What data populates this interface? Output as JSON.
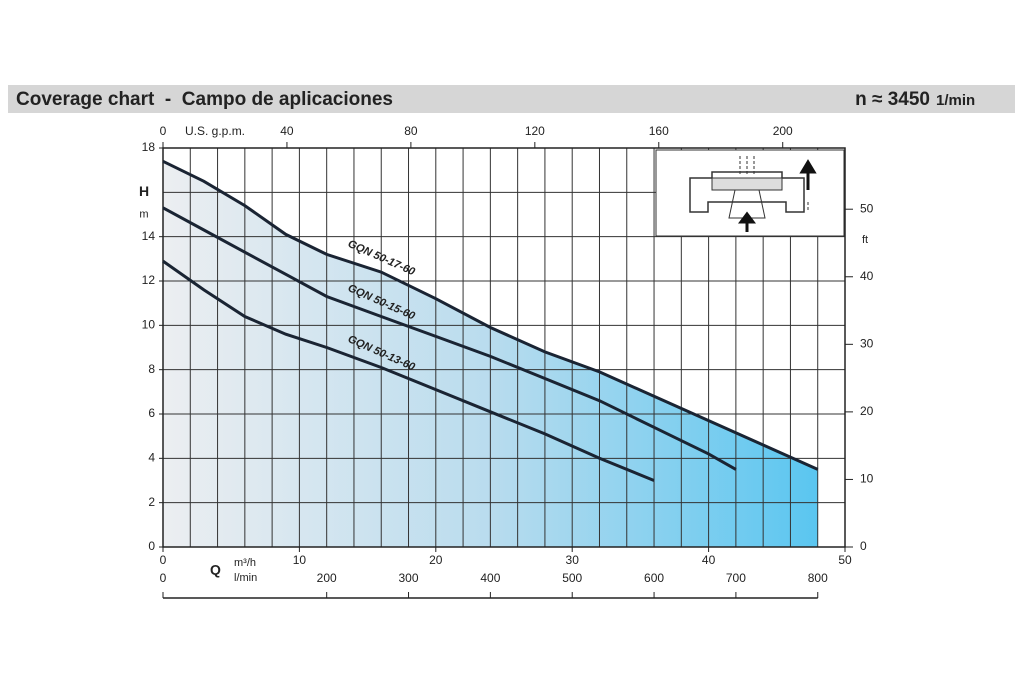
{
  "chart_data": {
    "type": "line",
    "title": "Coverage chart  -  Campo de aplicaciones",
    "speed": "n ≈ 3450",
    "speed_unit": "1/min",
    "ylabel": "H",
    "yunit": "m",
    "y2label": "ft",
    "xsymbol": "Q",
    "xlabel": "m³/h",
    "x2label": "l/min",
    "x3label": "U.S. g.p.m.",
    "xlim": [
      0,
      50
    ],
    "xticks": [
      0,
      10,
      20,
      30,
      40,
      50
    ],
    "xgrid": [
      0,
      2,
      4,
      6,
      8,
      10,
      12,
      14,
      16,
      18,
      20,
      22,
      24,
      26,
      28,
      30,
      32,
      34,
      36,
      38,
      40,
      42,
      44,
      46,
      48,
      50
    ],
    "x2lim": [
      0,
      833.3
    ],
    "x2ticks": [
      0,
      200,
      300,
      400,
      500,
      600,
      700,
      800
    ],
    "x3lim": [
      0,
      220.1
    ],
    "x3ticks": [
      0,
      40,
      80,
      120,
      160,
      200
    ],
    "ylim": [
      0,
      18
    ],
    "yticks": [
      0,
      2,
      4,
      6,
      8,
      10,
      12,
      14,
      18
    ],
    "ygrid": [
      0,
      2,
      4,
      6,
      8,
      10,
      12,
      14,
      16,
      18
    ],
    "y2lim": [
      0,
      59.06
    ],
    "y2ticks": [
      0,
      10,
      20,
      30,
      40,
      50
    ],
    "series": [
      {
        "name": "GQN 50-17-60",
        "color": "#1a2433",
        "x": [
          0,
          3,
          6,
          9,
          12,
          16,
          20,
          24,
          28,
          32,
          36,
          40,
          44,
          48
        ],
        "values": [
          17.4,
          16.5,
          15.4,
          14.1,
          13.2,
          12.4,
          11.2,
          9.9,
          8.8,
          7.9,
          6.8,
          5.7,
          4.6,
          3.5
        ]
      },
      {
        "name": "GQN 50-15-60",
        "color": "#1a2433",
        "x": [
          0,
          3,
          6,
          9,
          12,
          16,
          20,
          24,
          28,
          32,
          36,
          40,
          42
        ],
        "values": [
          15.3,
          14.3,
          13.3,
          12.3,
          11.3,
          10.4,
          9.5,
          8.6,
          7.6,
          6.6,
          5.4,
          4.2,
          3.5
        ]
      },
      {
        "name": "GQN 50-13-60",
        "color": "#1a2433",
        "x": [
          0,
          3,
          6,
          9,
          12,
          16,
          20,
          24,
          28,
          32,
          36
        ],
        "values": [
          12.9,
          11.6,
          10.4,
          9.6,
          9.0,
          8.1,
          7.1,
          6.1,
          5.1,
          4.0,
          3.0
        ]
      }
    ]
  }
}
